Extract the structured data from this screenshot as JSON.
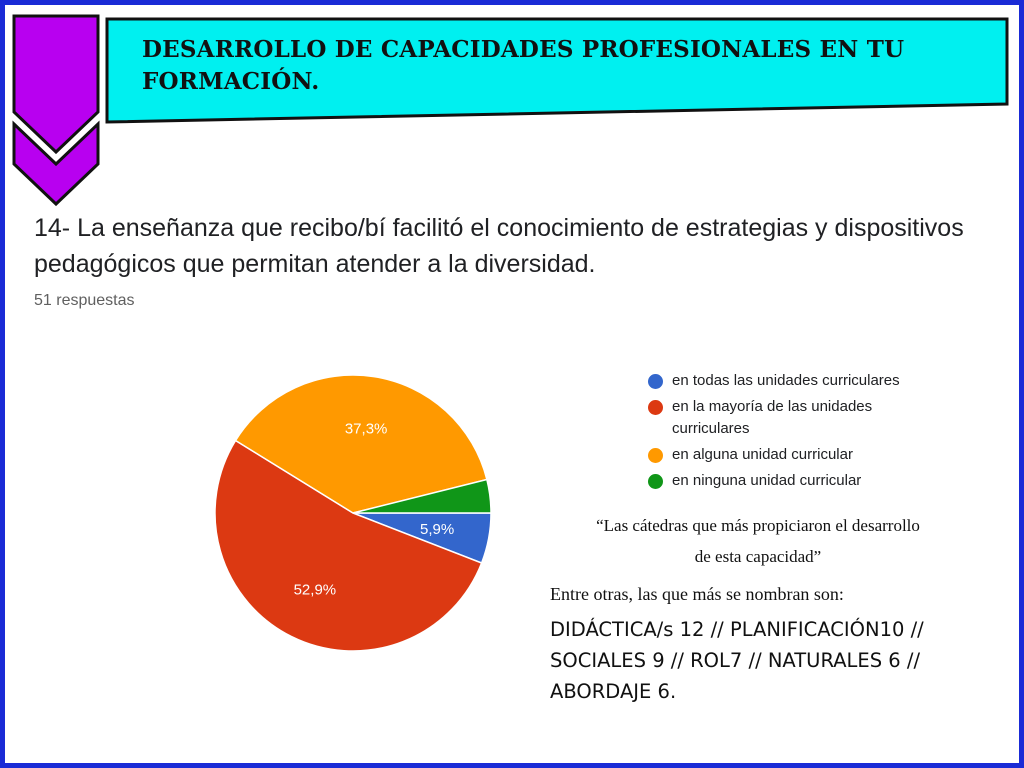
{
  "header": {
    "title": "DESARROLLO DE CAPACIDADES PROFESIONALES EN TU FORMACIÓN."
  },
  "question": {
    "text": "14- La enseñanza que recibo/bí facilitó el conocimiento de estrategias y dispositivos pedagógicos que permitan atender a la diversidad.",
    "responses": "51 respuestas"
  },
  "colors": {
    "frame": "#1a2bd6",
    "banner": "#00f0f0",
    "chevron": "#b800f0"
  },
  "chart_data": {
    "type": "pie",
    "title": "",
    "slices": [
      {
        "label": "en todas las unidades curriculares",
        "value": 5.9,
        "display": "5,9%",
        "color": "#3366cc"
      },
      {
        "label": "en la mayoría de las unidades curriculares",
        "value": 52.9,
        "display": "52,9%",
        "color": "#dc3912"
      },
      {
        "label": "en alguna unidad curricular",
        "value": 37.3,
        "display": "37,3%",
        "color": "#ff9900"
      },
      {
        "label": "en ninguna unidad curricular",
        "value": 3.9,
        "display": "",
        "color": "#109618"
      }
    ],
    "legend_position": "right"
  },
  "notes": {
    "quote_line1": "“Las cátedras que más propiciaron  el desarrollo",
    "quote_line2": "de esta capacidad”",
    "intro": "Entre otras, las que más se nombran son:",
    "list_line1": "DIDÁCTICA/s 12 //  PLANIFICACIÓN10 //",
    "list_line2": "SOCIALES 9 // ROL7 // NATURALES 6 //",
    "list_line3": "ABORDAJE 6."
  }
}
